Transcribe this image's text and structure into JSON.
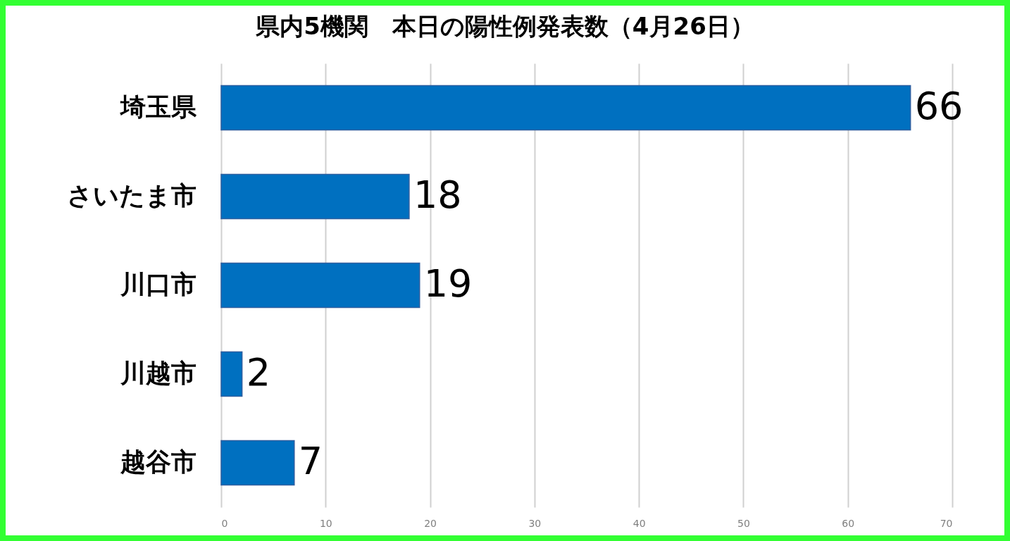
{
  "chart_data": {
    "type": "bar",
    "orientation": "horizontal",
    "title": "県内5機関　本日の陽性例発表数（4月26日）",
    "categories": [
      "埼玉県",
      "さいたま市",
      "川口市",
      "川越市",
      "越谷市"
    ],
    "values": [
      66,
      18,
      19,
      2,
      7
    ],
    "color": "#0070c0",
    "xlim": [
      0,
      70
    ],
    "xticks": [
      0,
      10,
      20,
      30,
      40,
      50,
      60,
      70
    ],
    "grid": "x",
    "data_labels": true
  }
}
